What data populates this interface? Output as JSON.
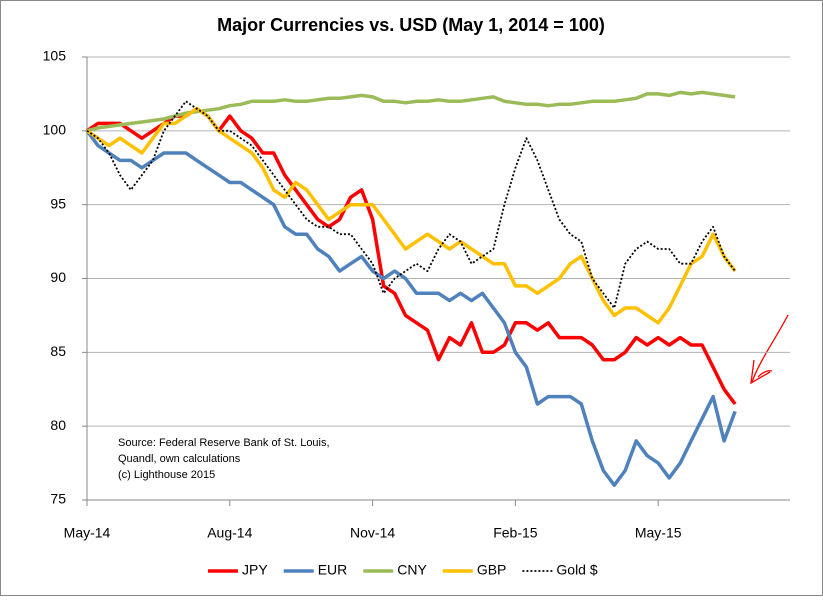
{
  "chart_data": {
    "type": "line",
    "title": "Major Currencies vs. USD (May 1, 2014 = 100)",
    "annotation": [
      "Source: Federal Reserve Bank of St. Louis,",
      "Quandl, own calculations",
      "(c) Lighthouse 2015"
    ],
    "categories": [
      "May-14",
      null,
      null,
      null,
      null,
      null,
      null,
      null,
      null,
      null,
      null,
      null,
      null,
      "Aug-14",
      null,
      null,
      null,
      null,
      null,
      null,
      null,
      null,
      null,
      null,
      null,
      null,
      "Nov-14",
      null,
      null,
      null,
      null,
      null,
      null,
      null,
      null,
      null,
      null,
      null,
      null,
      "Feb-15",
      null,
      null,
      null,
      null,
      null,
      null,
      null,
      null,
      null,
      null,
      null,
      null,
      "May-15",
      null,
      null,
      null,
      null,
      null,
      null,
      null,
      null,
      null,
      null,
      null,
      null
    ],
    "ylim": [
      75,
      105
    ],
    "yticks": [
      75,
      80,
      85,
      90,
      95,
      100,
      105
    ],
    "grid": true,
    "legend": "bottom",
    "series": [
      {
        "name": "JPY",
        "color": "#ff0000",
        "values": [
          100,
          100.5,
          100.5,
          100.5,
          100,
          99.5,
          100,
          100.5,
          101,
          101,
          101.5,
          101,
          100,
          101,
          100,
          99.5,
          98.5,
          98.5,
          97,
          96,
          95,
          94,
          93.5,
          94,
          95.5,
          96,
          94,
          89.5,
          89,
          87.5,
          87,
          86.5,
          84.5,
          86,
          85.5,
          87,
          85,
          85,
          85.5,
          87,
          87,
          86.5,
          87,
          86,
          86,
          86,
          85.5,
          84.5,
          84.5,
          85,
          86,
          85.5,
          86,
          85.5,
          86,
          85.5,
          85.5,
          84,
          82.5,
          81.5,
          null,
          null,
          null,
          null,
          null
        ]
      },
      {
        "name": "EUR",
        "color": "#4f81bd",
        "values": [
          100,
          99,
          98.5,
          98,
          98,
          97.5,
          98,
          98.5,
          98.5,
          98.5,
          98,
          97.5,
          97,
          96.5,
          96.5,
          96,
          95.5,
          95,
          93.5,
          93,
          93,
          92,
          91.5,
          90.5,
          91,
          91.5,
          90.5,
          90,
          90.5,
          90,
          89,
          89,
          89,
          88.5,
          89,
          88.5,
          89,
          88,
          87,
          85,
          84,
          81.5,
          82,
          82,
          82,
          81.5,
          79,
          77,
          76,
          77,
          79,
          78,
          77.5,
          76.5,
          77.5,
          79,
          80.5,
          82,
          79,
          81,
          null,
          null,
          null,
          null,
          null
        ]
      },
      {
        "name": "CNY",
        "color": "#9bbb59",
        "values": [
          100,
          100.2,
          100.3,
          100.4,
          100.5,
          100.6,
          100.7,
          100.8,
          101,
          101.2,
          101.3,
          101.4,
          101.5,
          101.7,
          101.8,
          102,
          102,
          102,
          102.1,
          102,
          102,
          102.1,
          102.2,
          102.2,
          102.3,
          102.4,
          102.3,
          102,
          102,
          101.9,
          102,
          102,
          102.1,
          102,
          102,
          102.1,
          102.2,
          102.3,
          102,
          101.9,
          101.8,
          101.8,
          101.7,
          101.8,
          101.8,
          101.9,
          102,
          102,
          102,
          102.1,
          102.2,
          102.5,
          102.5,
          102.4,
          102.6,
          102.5,
          102.6,
          102.5,
          102.4,
          102.3,
          null,
          null,
          null,
          null,
          null
        ]
      },
      {
        "name": "GBP",
        "color": "#ffc000",
        "values": [
          100,
          99.5,
          99,
          99.5,
          99,
          98.5,
          99.5,
          100.5,
          100.5,
          101,
          101.5,
          101,
          100,
          99.5,
          99,
          98.5,
          97.5,
          96,
          95.5,
          96.5,
          96,
          95,
          94,
          94.5,
          95,
          95,
          95,
          94,
          93,
          92,
          92.5,
          93,
          92.5,
          92,
          92.5,
          92,
          91.5,
          91,
          91,
          89.5,
          89.5,
          89,
          89.5,
          90,
          91,
          91.5,
          90,
          88.5,
          87.5,
          88,
          88,
          87.5,
          87,
          88,
          89.5,
          91,
          91.5,
          93,
          91.5,
          90.5,
          null,
          null,
          null,
          null,
          null
        ]
      },
      {
        "name": "Gold $",
        "color": "#000000",
        "dashed": true,
        "values": [
          100,
          99.5,
          98.5,
          97,
          96,
          97,
          98,
          100,
          101,
          102,
          101.5,
          101,
          100,
          100,
          99.5,
          99,
          98,
          97,
          96,
          95,
          94,
          93.5,
          93.5,
          93,
          93,
          92,
          91,
          89,
          90,
          90.5,
          91,
          90.5,
          92,
          93,
          92.5,
          91,
          91.5,
          92,
          95,
          97.5,
          99.5,
          98,
          96,
          94,
          93,
          92.5,
          90,
          89,
          88,
          91,
          92,
          92.5,
          92,
          92,
          91,
          91,
          92.5,
          93.5,
          91.5,
          90.5,
          null,
          null,
          null,
          null,
          null
        ]
      }
    ]
  }
}
